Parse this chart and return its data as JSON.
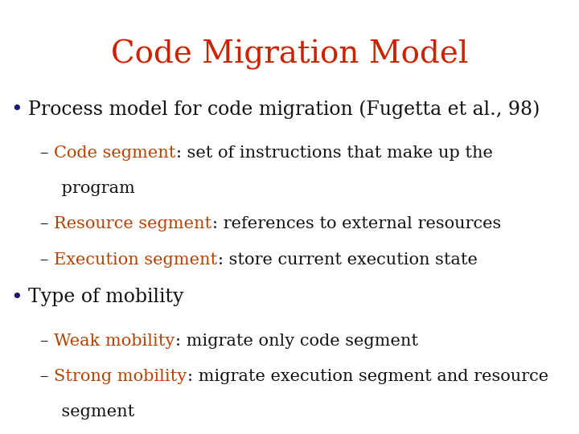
{
  "title": "Code Migration Model",
  "title_color": "#cc2200",
  "title_fontsize": 28,
  "background_color": "#ffffff",
  "bullet_color": "#1a1a6e",
  "bullet_fontsize": 17,
  "sub_fontsize": 15,
  "text_color_dark": "#111111",
  "text_color_orange": "#b84000",
  "items": [
    {
      "type": "bullet",
      "text": "Process model for code migration (Fugetta et al., 98)",
      "color": "#111111"
    },
    {
      "type": "sub",
      "lines": [
        [
          {
            "text": "– ",
            "color": "#111111",
            "bold": false
          },
          {
            "text": "Code segment",
            "color": "#b84000",
            "bold": false
          },
          {
            "text": ": set of instructions that make up the",
            "color": "#111111",
            "bold": false
          }
        ],
        [
          {
            "text": "    program",
            "color": "#111111",
            "bold": false
          }
        ]
      ]
    },
    {
      "type": "sub",
      "lines": [
        [
          {
            "text": "– ",
            "color": "#111111",
            "bold": false
          },
          {
            "text": "Resource segment",
            "color": "#b84000",
            "bold": false
          },
          {
            "text": ": references to external resources",
            "color": "#111111",
            "bold": false
          }
        ]
      ]
    },
    {
      "type": "sub",
      "lines": [
        [
          {
            "text": "– ",
            "color": "#111111",
            "bold": false
          },
          {
            "text": "Execution segment",
            "color": "#b84000",
            "bold": false
          },
          {
            "text": ": store current execution state",
            "color": "#111111",
            "bold": false
          }
        ]
      ]
    },
    {
      "type": "bullet",
      "text": "Type of mobility",
      "color": "#111111"
    },
    {
      "type": "sub",
      "lines": [
        [
          {
            "text": "– ",
            "color": "#111111",
            "bold": false
          },
          {
            "text": "Weak mobility",
            "color": "#b84000",
            "bold": false
          },
          {
            "text": ": migrate only code segment",
            "color": "#111111",
            "bold": false
          }
        ]
      ]
    },
    {
      "type": "sub",
      "lines": [
        [
          {
            "text": "– ",
            "color": "#111111",
            "bold": false
          },
          {
            "text": "Strong mobility",
            "color": "#b84000",
            "bold": false
          },
          {
            "text": ": migrate execution segment and resource",
            "color": "#111111",
            "bold": false
          }
        ],
        [
          {
            "text": "    segment",
            "color": "#111111",
            "bold": false
          }
        ]
      ]
    }
  ]
}
